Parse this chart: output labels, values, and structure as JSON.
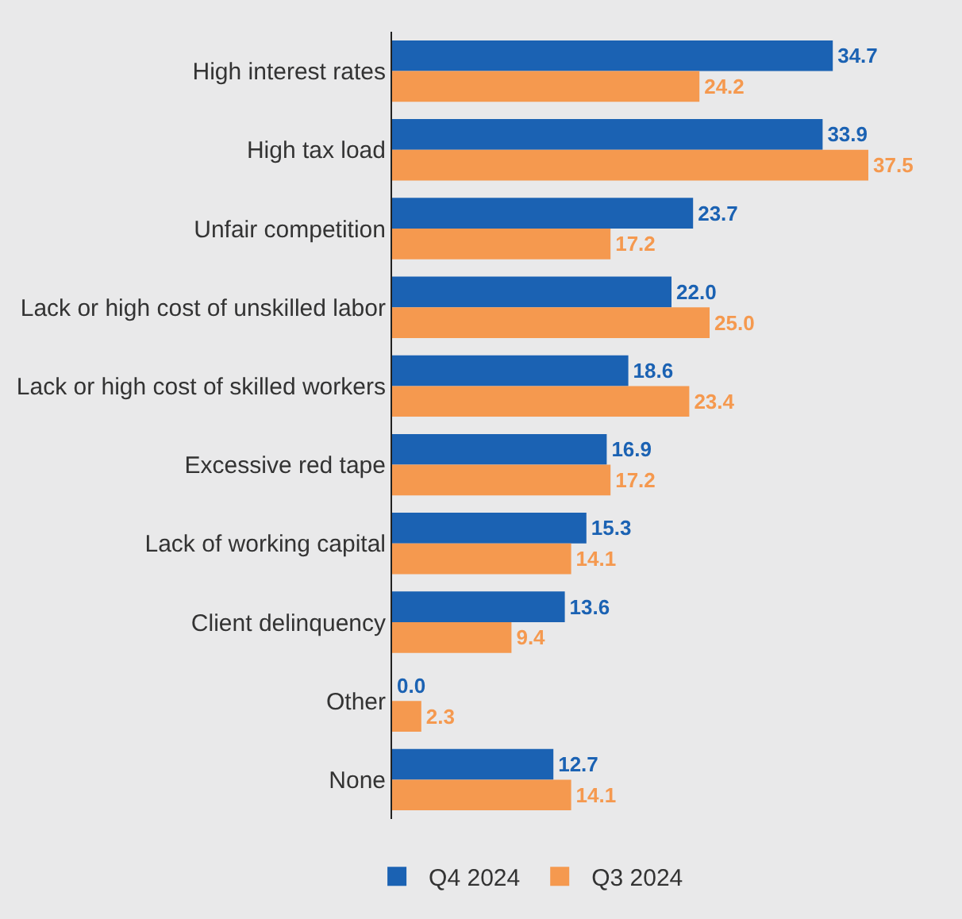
{
  "chart_data": {
    "type": "bar",
    "orientation": "horizontal",
    "legend": "bottom",
    "categories": [
      "High interest rates",
      "High tax load",
      "Unfair competition",
      "Lack or high cost of unskilled labor",
      "Lack or high cost of skilled workers",
      "Excessive red tape",
      "Lack of working capital",
      "Client delinquency",
      "Other",
      "None"
    ],
    "series": [
      {
        "name": "Q4 2024",
        "color": "#1b62b3",
        "values": [
          34.7,
          33.9,
          23.7,
          22.0,
          18.6,
          16.9,
          15.3,
          13.6,
          0.0,
          12.7
        ],
        "value_labels": [
          "34.7",
          "33.9",
          "23.7",
          "22.0",
          "18.6",
          "16.9",
          "15.3",
          "13.6",
          "0.0",
          "12.7"
        ]
      },
      {
        "name": "Q3 2024",
        "color": "#f5994f",
        "values": [
          24.2,
          37.5,
          17.2,
          25.0,
          23.4,
          17.2,
          14.1,
          9.4,
          2.3,
          14.1
        ],
        "value_labels": [
          "24.2",
          "37.5",
          "17.2",
          "25.0",
          "23.4",
          "17.2",
          "14.1",
          "9.4",
          "2.3",
          "14.1"
        ]
      }
    ]
  }
}
